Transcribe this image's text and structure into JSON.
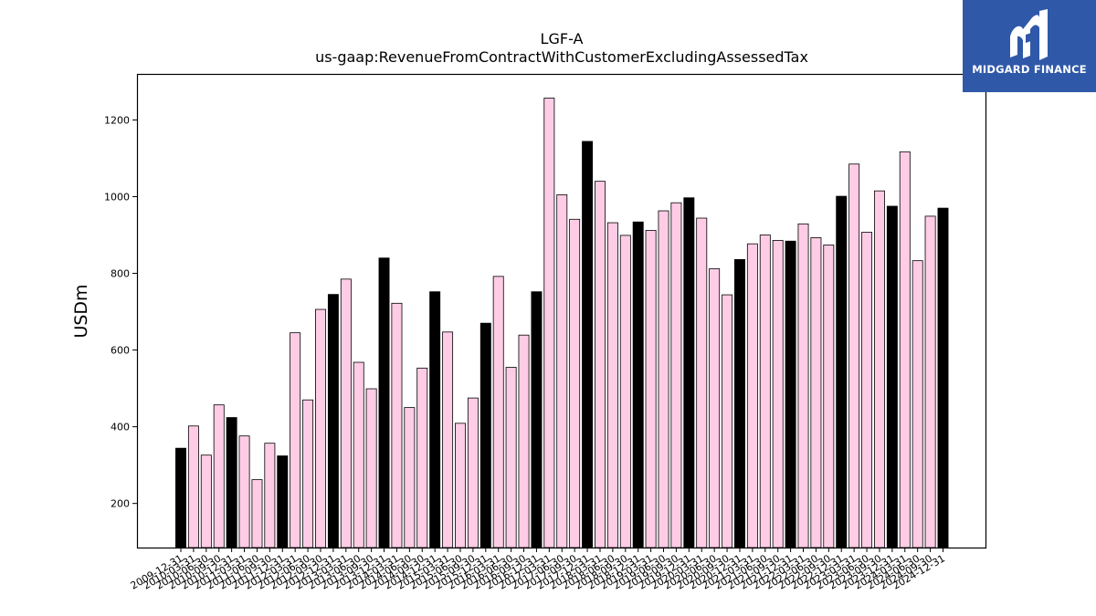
{
  "chart_data": {
    "type": "bar",
    "title": "LGF-A",
    "subtitle": "us-gaap:RevenueFromContractWithCustomerExcludingAssessedTax",
    "xlabel": "",
    "ylabel": "USDm",
    "ylim": [
      85,
      1320
    ],
    "yticks": [
      200,
      400,
      600,
      800,
      1000,
      1200
    ],
    "grid": false,
    "legend": "none",
    "colors": {
      "quarter": "#ffcce6",
      "fiscal_year_end": "#000000",
      "edge": "#000000"
    },
    "categories": [
      "2009-12-31",
      "2010-03-31",
      "2010-06-30",
      "2010-09-30",
      "2010-12-31",
      "2011-03-31",
      "2011-06-30",
      "2011-09-30",
      "2011-12-31",
      "2012-03-31",
      "2012-06-30",
      "2012-09-30",
      "2012-12-31",
      "2013-03-31",
      "2013-06-30",
      "2013-09-30",
      "2013-12-31",
      "2014-03-31",
      "2014-06-30",
      "2014-09-30",
      "2014-12-31",
      "2015-03-31",
      "2015-06-30",
      "2015-09-30",
      "2015-12-31",
      "2016-03-31",
      "2016-06-30",
      "2016-09-30",
      "2016-12-31",
      "2017-03-31",
      "2017-06-30",
      "2017-09-30",
      "2017-12-31",
      "2018-03-31",
      "2018-06-30",
      "2018-09-30",
      "2018-12-31",
      "2019-03-31",
      "2019-06-30",
      "2019-09-30",
      "2019-12-31",
      "2020-03-31",
      "2020-06-30",
      "2020-09-30",
      "2020-12-31",
      "2021-03-31",
      "2021-06-30",
      "2021-09-30",
      "2021-12-31",
      "2022-03-31",
      "2022-06-30",
      "2022-09-30",
      "2022-12-31",
      "2023-03-31",
      "2023-06-30",
      "2023-09-30",
      "2023-12-31",
      "2024-03-31",
      "2024-06-30",
      "2024-09-30",
      "2024-12-31"
    ],
    "values": [
      344,
      402,
      326,
      457,
      424,
      376,
      262,
      357,
      324,
      645,
      470,
      706,
      745,
      785,
      568,
      499,
      840,
      722,
      450,
      553,
      752,
      647,
      409,
      475,
      670,
      792,
      555,
      639,
      752,
      1257,
      1005,
      941,
      1144,
      1040,
      932,
      899,
      934,
      912,
      963,
      984,
      997,
      944,
      812,
      744,
      836,
      877,
      900,
      886,
      884,
      929,
      893,
      874,
      1001,
      1085,
      907,
      1015,
      975,
      1117,
      833,
      949,
      970
    ],
    "highlight_indices": [
      0,
      4,
      8,
      12,
      16,
      20,
      24,
      28,
      32,
      36,
      40,
      44,
      48,
      52,
      56,
      60
    ]
  },
  "logo": {
    "text": "MIDGARD FINANCE",
    "icon": "midgard-logo-icon",
    "background": "#2f58a8"
  }
}
